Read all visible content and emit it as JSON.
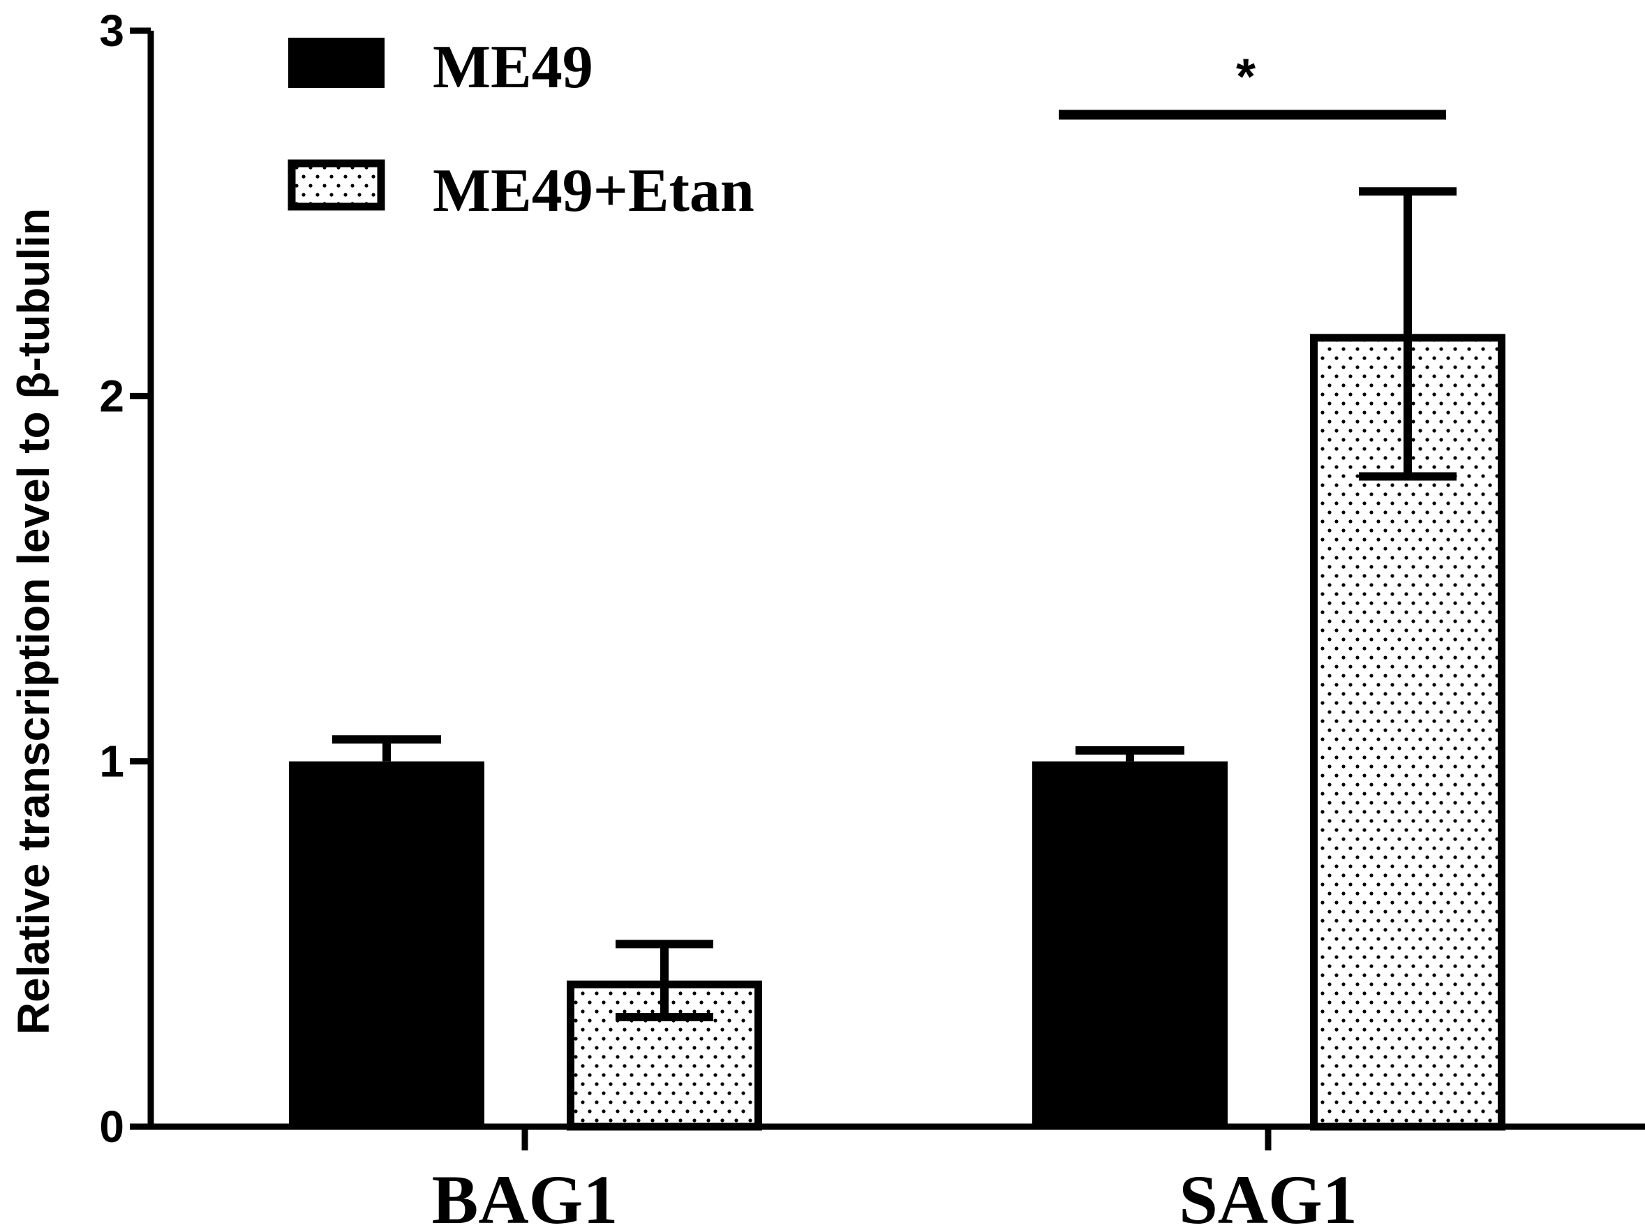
{
  "chart_data": {
    "type": "bar",
    "categories": [
      "BAG1",
      "SAG1"
    ],
    "series": [
      {
        "name": "ME49",
        "values": [
          1.0,
          1.0
        ],
        "errors": [
          0.06,
          0.03
        ],
        "fill": "solid"
      },
      {
        "name": "ME49+Etan",
        "values": [
          0.4,
          2.17
        ],
        "errors": [
          0.1,
          0.39
        ],
        "fill": "dotted"
      }
    ],
    "xlabel": "",
    "ylabel": "Relative transcription level to β-tubulin",
    "ylim": [
      0,
      3
    ],
    "yticks": [
      "0",
      "1",
      "2",
      "3"
    ],
    "grid": false,
    "legend_position": "top-left",
    "annotations": [
      {
        "text": "*",
        "category": "SAG1",
        "level": 2.77
      }
    ],
    "colors": {
      "bar": "#000000",
      "background": "#ffffff"
    }
  }
}
